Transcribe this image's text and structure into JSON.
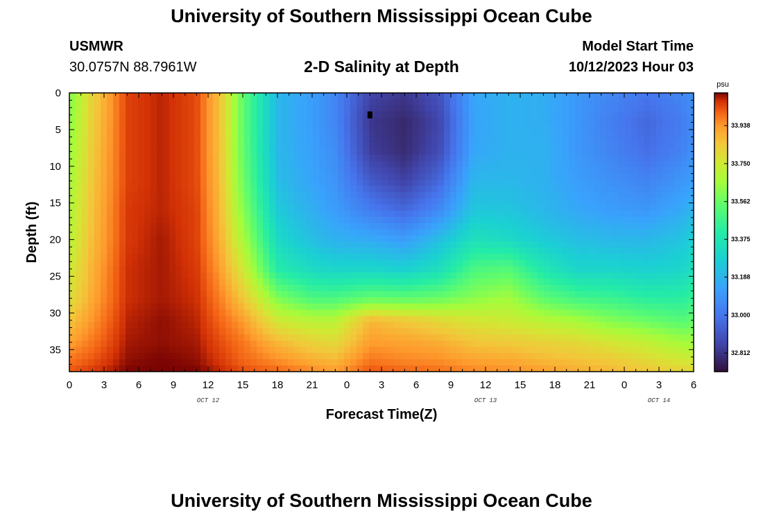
{
  "header": {
    "title": "University of Southern Mississippi Ocean Cube",
    "station_id": "USMWR",
    "station_coords": "30.0757N  88.7961W",
    "subtitle": "2-D Salinity at Depth",
    "model_start_label": "Model Start Time",
    "model_start_value": "10/12/2023 Hour 03"
  },
  "footer": {
    "title": "University of Southern Mississippi Ocean Cube"
  },
  "chart_data": {
    "type": "heatmap",
    "title": "2-D Salinity at Depth",
    "xlabel": "Forecast Time(Z)",
    "ylabel": "Depth (ft)",
    "x_range_hours": [
      0,
      54
    ],
    "x_tick_labels": [
      "0",
      "3",
      "6",
      "9",
      "12",
      "15",
      "18",
      "21",
      "0",
      "3",
      "6",
      "9",
      "12",
      "15",
      "18",
      "21",
      "0",
      "3",
      "6"
    ],
    "date_labels": [
      "OCT 12",
      "OCT 13",
      "OCT 14"
    ],
    "date_label_hours": [
      12,
      36,
      51
    ],
    "y_range": [
      0,
      38
    ],
    "y_reversed": true,
    "y_ticks": [
      0,
      5,
      10,
      15,
      20,
      25,
      30,
      35
    ],
    "colorbar": {
      "unit": "psu",
      "range": [
        32.72,
        34.1
      ],
      "tick_values": [
        33.938,
        33.75,
        33.562,
        33.375,
        33.188,
        33.0,
        32.812
      ],
      "tick_labels": [
        "33.938",
        "33.750",
        "33.562",
        "33.375",
        "33.188",
        "33.000",
        "32.812"
      ]
    },
    "depths": [
      0,
      4,
      8,
      12,
      16,
      20,
      24,
      28,
      31,
      34,
      36.5,
      38
    ],
    "time_hours": [
      0,
      2,
      5,
      8,
      11,
      13,
      15,
      18,
      21,
      23,
      26,
      29,
      32,
      35,
      38,
      41,
      44,
      47,
      50,
      53,
      54
    ],
    "values": [
      [
        33.6,
        33.62,
        33.64,
        33.66,
        33.68,
        33.7,
        33.74,
        33.78,
        33.85,
        33.92,
        33.98,
        34.02
      ],
      [
        33.82,
        33.83,
        33.84,
        33.85,
        33.86,
        33.87,
        33.89,
        33.91,
        33.94,
        33.98,
        34.02,
        34.05
      ],
      [
        34.04,
        34.04,
        34.04,
        34.04,
        34.05,
        34.05,
        34.06,
        34.06,
        34.07,
        34.08,
        34.09,
        34.1
      ],
      [
        34.07,
        34.07,
        34.07,
        34.07,
        34.07,
        34.08,
        34.08,
        34.08,
        34.09,
        34.09,
        34.1,
        34.1
      ],
      [
        34.03,
        34.03,
        34.03,
        34.03,
        34.04,
        34.04,
        34.05,
        34.06,
        34.07,
        34.08,
        34.09,
        34.1
      ],
      [
        33.86,
        33.86,
        33.86,
        33.87,
        33.88,
        33.9,
        33.93,
        33.97,
        34.0,
        34.03,
        34.05,
        34.07
      ],
      [
        33.55,
        33.55,
        33.56,
        33.58,
        33.62,
        33.68,
        33.76,
        33.85,
        33.93,
        33.98,
        34.0,
        34.03
      ],
      [
        33.2,
        33.2,
        33.2,
        33.22,
        33.26,
        33.32,
        33.4,
        33.6,
        33.75,
        33.88,
        33.95,
        34.0
      ],
      [
        33.12,
        33.12,
        33.13,
        33.14,
        33.17,
        33.22,
        33.32,
        33.5,
        33.7,
        33.82,
        33.9,
        33.96
      ],
      [
        33.05,
        33.05,
        33.07,
        33.09,
        33.12,
        33.18,
        33.3,
        33.5,
        33.7,
        33.8,
        33.88,
        33.93
      ],
      [
        32.86,
        32.82,
        32.84,
        32.92,
        33.02,
        33.16,
        33.3,
        33.55,
        33.88,
        33.93,
        33.98,
        34.02
      ],
      [
        32.82,
        32.78,
        32.79,
        32.85,
        32.96,
        33.12,
        33.28,
        33.54,
        33.84,
        33.92,
        33.96,
        34.0
      ],
      [
        32.9,
        32.86,
        32.88,
        32.96,
        33.06,
        33.22,
        33.34,
        33.56,
        33.8,
        33.9,
        33.95,
        33.99
      ],
      [
        33.15,
        33.14,
        33.15,
        33.2,
        33.25,
        33.35,
        33.5,
        33.62,
        33.76,
        33.85,
        33.92,
        33.96
      ],
      [
        33.18,
        33.18,
        33.18,
        33.2,
        33.24,
        33.32,
        33.52,
        33.66,
        33.74,
        33.84,
        33.91,
        33.95
      ],
      [
        33.17,
        33.17,
        33.18,
        33.18,
        33.2,
        33.26,
        33.38,
        33.54,
        33.7,
        33.82,
        33.88,
        33.93
      ],
      [
        33.1,
        33.1,
        33.1,
        33.12,
        33.15,
        33.22,
        33.3,
        33.48,
        33.66,
        33.8,
        33.86,
        33.9
      ],
      [
        33.05,
        33.02,
        33.04,
        33.08,
        33.12,
        33.2,
        33.3,
        33.46,
        33.6,
        33.76,
        33.84,
        33.88
      ],
      [
        33.0,
        32.96,
        32.98,
        33.04,
        33.1,
        33.2,
        33.28,
        33.42,
        33.56,
        33.72,
        33.8,
        33.85
      ],
      [
        33.05,
        33.02,
        33.04,
        33.1,
        33.16,
        33.24,
        33.3,
        33.42,
        33.52,
        33.66,
        33.76,
        33.82
      ],
      [
        33.08,
        33.06,
        33.08,
        33.12,
        33.2,
        33.28,
        33.35,
        33.45,
        33.55,
        33.66,
        33.75,
        33.8
      ]
    ],
    "marker": {
      "hour": 26,
      "depth": 3
    }
  }
}
